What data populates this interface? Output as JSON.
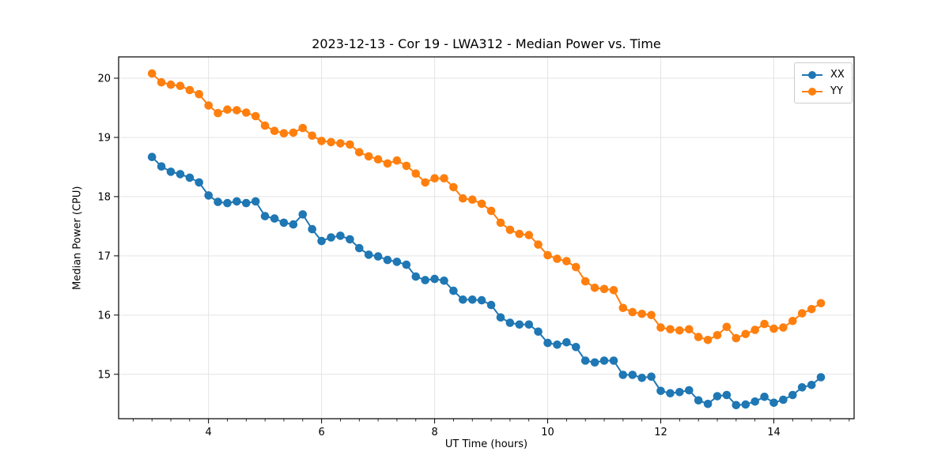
{
  "figure": {
    "background": "#ffffff"
  },
  "chart_data": {
    "type": "line",
    "title": "2023-12-13 - Cor 19 - LWA312 - Median Power vs. Time",
    "xlabel": "UT Time (hours)",
    "ylabel": "Median Power (CPU)",
    "xlim": [
      2.41,
      15.42
    ],
    "ylim": [
      14.25,
      20.36
    ],
    "xticks": [
      4,
      6,
      8,
      10,
      12,
      14
    ],
    "yticks": [
      15,
      16,
      17,
      18,
      19,
      20
    ],
    "x_minor_tick_step_hours": 0.333,
    "grid": true,
    "grid_color": "#e3e3e3",
    "spine_color": "#000000",
    "legend_position": "upper right",
    "marker": "circle",
    "x": [
      3.0,
      3.167,
      3.333,
      3.5,
      3.667,
      3.833,
      4.0,
      4.167,
      4.333,
      4.5,
      4.667,
      4.833,
      5.0,
      5.167,
      5.333,
      5.5,
      5.667,
      5.833,
      6.0,
      6.167,
      6.333,
      6.5,
      6.667,
      6.833,
      7.0,
      7.167,
      7.333,
      7.5,
      7.667,
      7.833,
      8.0,
      8.167,
      8.333,
      8.5,
      8.667,
      8.833,
      9.0,
      9.167,
      9.333,
      9.5,
      9.667,
      9.833,
      10.0,
      10.167,
      10.333,
      10.5,
      10.667,
      10.833,
      11.0,
      11.167,
      11.333,
      11.5,
      11.667,
      11.833,
      12.0,
      12.167,
      12.333,
      12.5,
      12.667,
      12.833,
      13.0,
      13.167,
      13.333,
      13.5,
      13.667,
      13.833,
      14.0,
      14.167,
      14.333,
      14.5,
      14.667,
      14.833
    ],
    "series": [
      {
        "name": "XX",
        "color": "#1f77b4",
        "values": [
          18.67,
          18.51,
          18.42,
          18.38,
          18.32,
          18.24,
          18.02,
          17.91,
          17.89,
          17.92,
          17.89,
          17.92,
          17.67,
          17.63,
          17.56,
          17.53,
          17.7,
          17.45,
          17.25,
          17.31,
          17.34,
          17.28,
          17.13,
          17.02,
          16.99,
          16.93,
          16.9,
          16.85,
          16.65,
          16.59,
          16.61,
          16.58,
          16.41,
          16.26,
          16.26,
          16.25,
          16.17,
          15.96,
          15.87,
          15.84,
          15.84,
          15.72,
          15.53,
          15.5,
          15.54,
          15.46,
          15.23,
          15.2,
          15.23,
          15.23,
          14.99,
          14.99,
          14.94,
          14.96,
          14.72,
          14.68,
          14.7,
          14.73,
          14.56,
          14.5,
          14.63,
          14.65,
          14.48,
          14.49,
          14.54,
          14.62,
          14.52,
          14.57,
          14.65,
          14.78,
          14.82,
          14.95
        ]
      },
      {
        "name": "YY",
        "color": "#ff7f0e",
        "values": [
          20.08,
          19.93,
          19.89,
          19.87,
          19.8,
          19.73,
          19.54,
          19.41,
          19.47,
          19.46,
          19.42,
          19.36,
          19.2,
          19.11,
          19.07,
          19.08,
          19.16,
          19.03,
          18.94,
          18.92,
          18.9,
          18.88,
          18.75,
          18.68,
          18.63,
          18.56,
          18.61,
          18.52,
          18.39,
          18.24,
          18.31,
          18.31,
          18.16,
          17.97,
          17.95,
          17.88,
          17.76,
          17.56,
          17.44,
          17.37,
          17.35,
          17.19,
          17.01,
          16.95,
          16.91,
          16.81,
          16.57,
          16.46,
          16.44,
          16.42,
          16.12,
          16.05,
          16.02,
          16.0,
          15.79,
          15.76,
          15.74,
          15.76,
          15.63,
          15.58,
          15.66,
          15.8,
          15.61,
          15.68,
          15.75,
          15.85,
          15.77,
          15.79,
          15.9,
          16.03,
          16.1,
          16.2
        ]
      }
    ]
  }
}
